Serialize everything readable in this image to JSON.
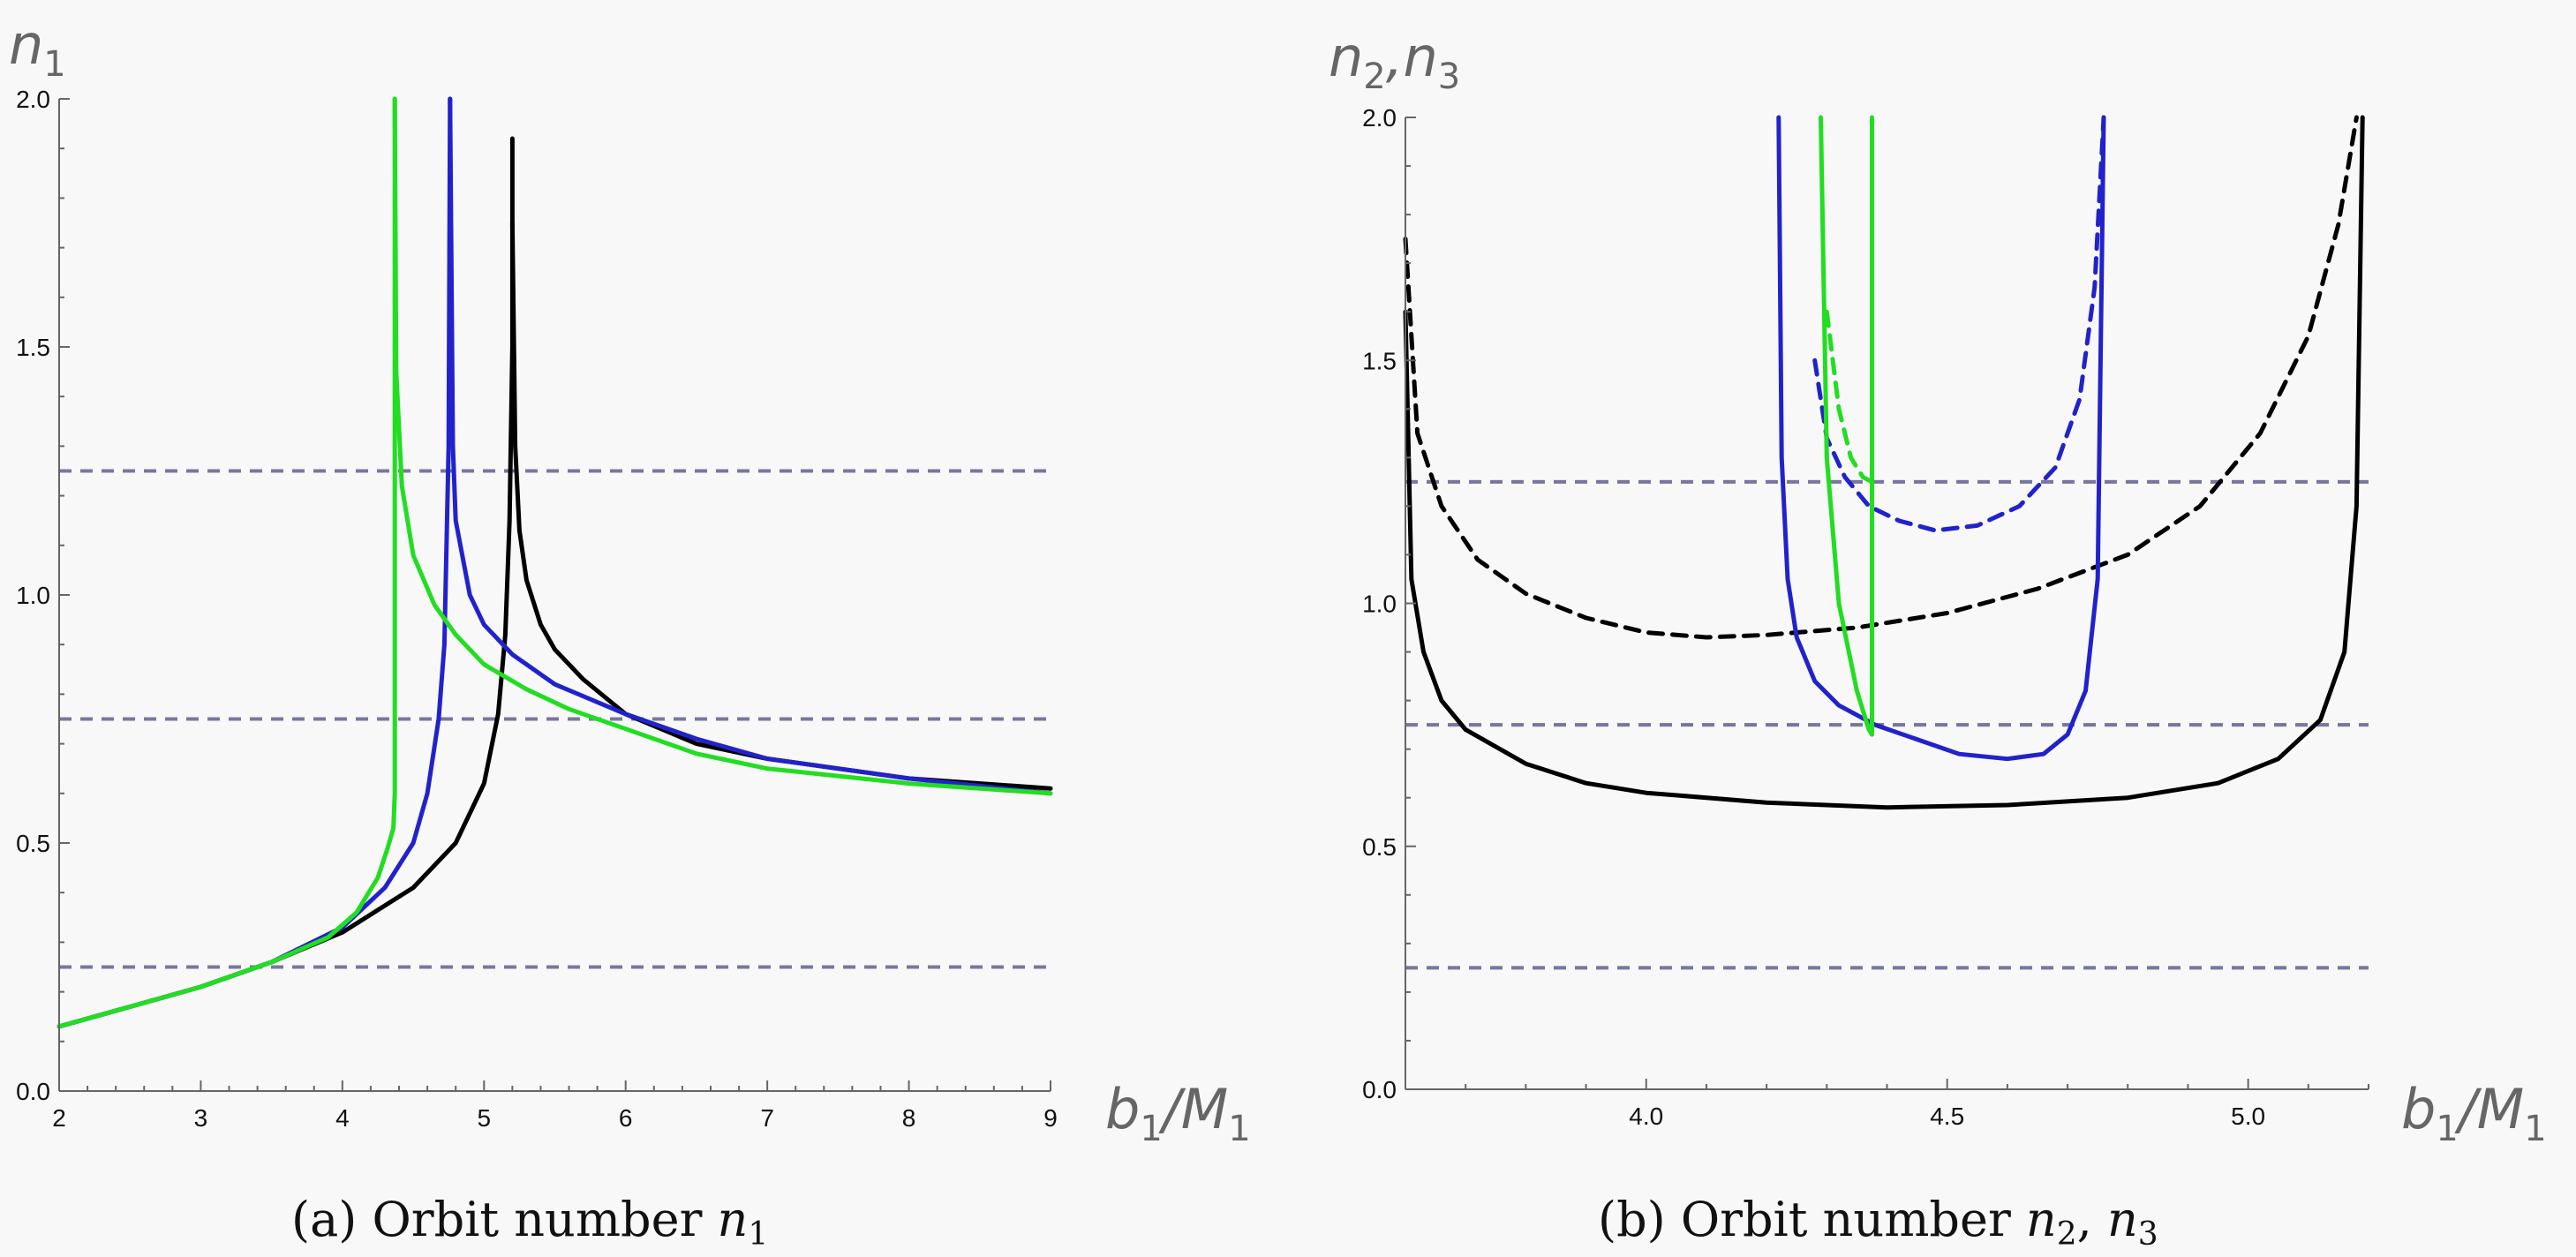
{
  "chart_data": [
    {
      "panel": "a",
      "type": "line",
      "caption": "(a) Orbit number n1",
      "caption_text": "(a) Orbit number ",
      "caption_math_base": "n",
      "caption_math_sub": "1",
      "ylabel_base": "n",
      "ylabel_sub": "1",
      "xlabel_base": "b",
      "xlabel_sub": "1",
      "xlabel_mid": "/M",
      "xlabel_sub2": "1",
      "xlim": [
        2,
        9
      ],
      "ylim": [
        0,
        2
      ],
      "xticks": [
        "2",
        "3",
        "4",
        "5",
        "6",
        "7",
        "8",
        "9"
      ],
      "yticks": [
        "0.0",
        "0.5",
        "1.0",
        "1.5",
        "2.0"
      ],
      "hlines": [
        0.25,
        0.75,
        1.25
      ],
      "series": [
        {
          "color": "#000000",
          "style": "solid",
          "x": [
            2,
            2.5,
            3,
            3.5,
            4,
            4.5,
            4.8,
            5.0,
            5.1,
            5.15,
            5.18,
            5.2,
            5.2
          ],
          "y": [
            0.13,
            0.17,
            0.21,
            0.26,
            0.32,
            0.41,
            0.5,
            0.62,
            0.76,
            0.92,
            1.15,
            1.5,
            1.92
          ]
        },
        {
          "color": "#000000",
          "style": "solid",
          "x": [
            5.2,
            5.22,
            5.25,
            5.3,
            5.4,
            5.5,
            5.7,
            6,
            6.5,
            7,
            8,
            9
          ],
          "y": [
            1.75,
            1.3,
            1.13,
            1.03,
            0.94,
            0.89,
            0.83,
            0.76,
            0.7,
            0.67,
            0.63,
            0.61
          ]
        },
        {
          "color": "#2222cc",
          "style": "solid",
          "x": [
            2,
            2.5,
            3,
            3.5,
            4,
            4.3,
            4.5,
            4.6,
            4.68,
            4.72,
            4.75,
            4.76
          ],
          "y": [
            0.13,
            0.17,
            0.21,
            0.26,
            0.33,
            0.41,
            0.5,
            0.6,
            0.75,
            0.9,
            1.3,
            2.0
          ]
        },
        {
          "color": "#2222cc",
          "style": "solid",
          "x": [
            4.76,
            4.78,
            4.8,
            4.9,
            5.0,
            5.2,
            5.5,
            6,
            6.5,
            7,
            8,
            9
          ],
          "y": [
            2.0,
            1.3,
            1.15,
            1.0,
            0.94,
            0.88,
            0.82,
            0.76,
            0.71,
            0.67,
            0.63,
            0.6
          ]
        },
        {
          "color": "#22dd22",
          "style": "solid",
          "x": [
            2,
            2.5,
            3,
            3.5,
            3.9,
            4.1,
            4.25,
            4.32,
            4.36,
            4.37,
            4.37
          ],
          "y": [
            0.13,
            0.17,
            0.21,
            0.26,
            0.31,
            0.36,
            0.43,
            0.49,
            0.53,
            0.6,
            2.0
          ]
        },
        {
          "color": "#22dd22",
          "style": "solid",
          "x": [
            4.37,
            4.38,
            4.42,
            4.5,
            4.65,
            4.8,
            5.0,
            5.3,
            5.6,
            6,
            6.5,
            7,
            8,
            9
          ],
          "y": [
            2.0,
            1.45,
            1.22,
            1.08,
            0.98,
            0.92,
            0.86,
            0.81,
            0.77,
            0.73,
            0.68,
            0.65,
            0.62,
            0.6
          ]
        }
      ]
    },
    {
      "panel": "b",
      "type": "line",
      "caption": "(b) Orbit number n2, n3",
      "caption_text": "(b) Orbit number ",
      "caption_math_base": "n",
      "caption_math_sub": "2",
      "caption_math_sep": ", ",
      "caption_math_base2": "n",
      "caption_math_sub2": "3",
      "ylabel_base": "n",
      "ylabel_sub": "2",
      "ylabel_sep": ",",
      "ylabel_base2": "n",
      "ylabel_sub2": "3",
      "xlabel_base": "b",
      "xlabel_sub": "1",
      "xlabel_mid": "/M",
      "xlabel_sub2": "1",
      "xlim": [
        3.6,
        5.2
      ],
      "ylim": [
        0,
        2
      ],
      "xticks": [
        "4.0",
        "4.5",
        "5.0"
      ],
      "xtick_values": [
        4.0,
        4.5,
        5.0
      ],
      "yticks": [
        "0.0",
        "0.5",
        "1.0",
        "1.5",
        "2.0"
      ],
      "hlines": [
        0.25,
        0.75,
        1.25
      ],
      "series": [
        {
          "color": "#000000",
          "style": "solid",
          "x": [
            3.6,
            3.61,
            3.63,
            3.66,
            3.7,
            3.8,
            3.9,
            4.0,
            4.2,
            4.4,
            4.6,
            4.8,
            4.95,
            5.05,
            5.12,
            5.16,
            5.18,
            5.19
          ],
          "y": [
            1.6,
            1.05,
            0.9,
            0.8,
            0.74,
            0.67,
            0.63,
            0.61,
            0.59,
            0.58,
            0.585,
            0.6,
            0.63,
            0.68,
            0.76,
            0.9,
            1.2,
            2.0
          ]
        },
        {
          "color": "#000000",
          "style": "dashed",
          "x": [
            3.6,
            3.62,
            3.66,
            3.72,
            3.8,
            3.9,
            4.0,
            4.1,
            4.2,
            4.35,
            4.5,
            4.65,
            4.8,
            4.92,
            5.02,
            5.1,
            5.15,
            5.18
          ],
          "y": [
            1.75,
            1.35,
            1.2,
            1.09,
            1.02,
            0.97,
            0.94,
            0.93,
            0.935,
            0.95,
            0.98,
            1.03,
            1.1,
            1.2,
            1.35,
            1.55,
            1.78,
            2.0
          ]
        },
        {
          "color": "#2222cc",
          "style": "solid",
          "x": [
            4.22,
            4.225,
            4.235,
            4.25,
            4.28,
            4.32,
            4.38,
            4.45,
            4.52,
            4.6,
            4.66,
            4.7,
            4.73,
            4.75,
            4.76
          ],
          "y": [
            2.0,
            1.3,
            1.05,
            0.93,
            0.84,
            0.79,
            0.75,
            0.72,
            0.69,
            0.68,
            0.69,
            0.73,
            0.82,
            1.05,
            2.0
          ]
        },
        {
          "color": "#2222cc",
          "style": "dashed",
          "x": [
            4.28,
            4.3,
            4.33,
            4.37,
            4.42,
            4.48,
            4.55,
            4.62,
            4.68,
            4.72,
            4.745,
            4.76
          ],
          "y": [
            1.5,
            1.34,
            1.26,
            1.2,
            1.17,
            1.15,
            1.16,
            1.2,
            1.28,
            1.42,
            1.65,
            2.0
          ]
        },
        {
          "color": "#22dd22",
          "style": "solid",
          "x": [
            4.29,
            4.3,
            4.32,
            4.35,
            4.37,
            4.375,
            4.375
          ],
          "y": [
            2.0,
            1.3,
            1.0,
            0.82,
            0.74,
            0.73,
            2.0
          ]
        },
        {
          "color": "#22dd22",
          "style": "dashed",
          "x": [
            4.3,
            4.32,
            4.34,
            4.36,
            4.375
          ],
          "y": [
            1.6,
            1.4,
            1.3,
            1.26,
            1.25
          ]
        }
      ]
    }
  ]
}
